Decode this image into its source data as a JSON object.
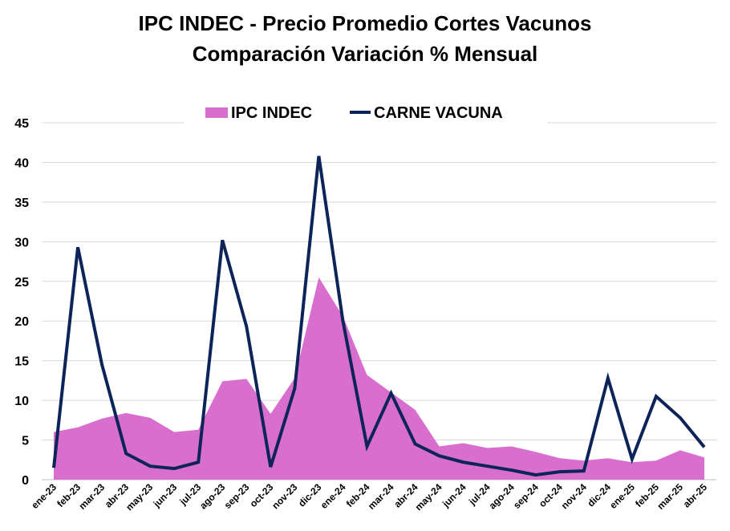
{
  "chart_data": {
    "type": "area",
    "title": "IPC INDEC - Precio Promedio Cortes Vacunos",
    "subtitle": "Comparación Variación % Mensual",
    "xlabel": "",
    "ylabel": "",
    "ylim": [
      0,
      45
    ],
    "yticks": [
      0,
      5,
      10,
      15,
      20,
      25,
      30,
      35,
      40,
      45
    ],
    "grid": true,
    "legend_position": "top-center",
    "categories": [
      "ene-23",
      "feb-23",
      "mar-23",
      "abr-23",
      "may-23",
      "jun-23",
      "jul-23",
      "ago-23",
      "sep-23",
      "oct-23",
      "nov-23",
      "dic-23",
      "ene-24",
      "feb-24",
      "mar-24",
      "abr-24",
      "may-24",
      "jun-24",
      "jul-24",
      "ago-24",
      "sep-24",
      "oct-24",
      "nov-24",
      "dic-24",
      "ene-25",
      "feb-25",
      "mar-25",
      "abr-25"
    ],
    "series": [
      {
        "name": "IPC INDEC",
        "kind": "area",
        "color": "#d86fcf",
        "values": [
          6.0,
          6.6,
          7.7,
          8.4,
          7.8,
          6.0,
          6.3,
          12.4,
          12.7,
          8.3,
          12.8,
          25.5,
          20.6,
          13.2,
          11.0,
          8.8,
          4.2,
          4.6,
          4.0,
          4.2,
          3.5,
          2.7,
          2.4,
          2.7,
          2.2,
          2.4,
          3.7,
          2.8
        ]
      },
      {
        "name": "CARNE VACUNA",
        "kind": "line",
        "color": "#0d2458",
        "values": [
          1.5,
          29.3,
          14.5,
          3.3,
          1.7,
          1.4,
          2.2,
          30.2,
          19.3,
          1.6,
          11.5,
          40.8,
          20.0,
          4.2,
          10.9,
          4.5,
          3.0,
          2.2,
          1.7,
          1.2,
          0.6,
          1.0,
          1.1,
          12.8,
          2.6,
          10.5,
          7.8,
          4.1
        ]
      }
    ]
  }
}
